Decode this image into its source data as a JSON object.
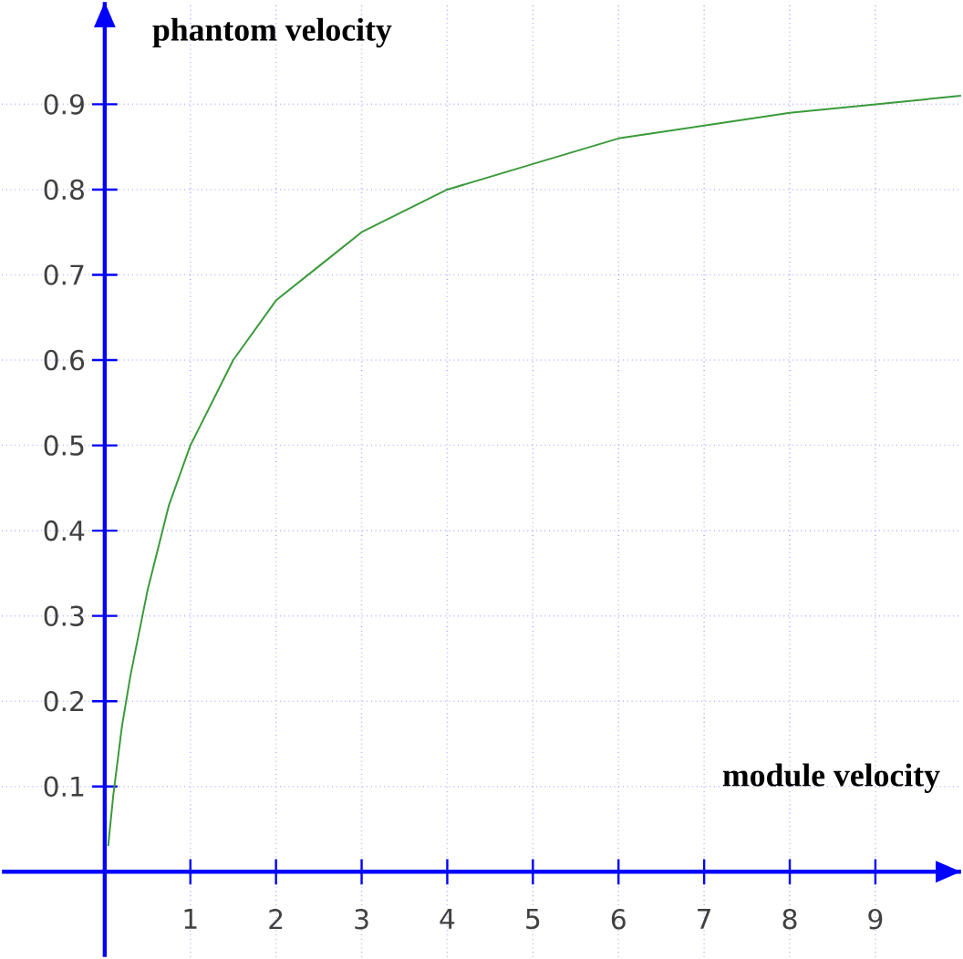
{
  "chart_data": {
    "type": "line",
    "xlabel": "module velocity",
    "ylabel": "phantom velocity",
    "xlim": [
      -1.2,
      10
    ],
    "ylim": [
      -0.1,
      1.02
    ],
    "xticks": [
      1,
      2,
      3,
      4,
      5,
      6,
      7,
      8,
      9
    ],
    "yticks": [
      0.1,
      0.2,
      0.3,
      0.4,
      0.5,
      0.6,
      0.7,
      0.8,
      0.9
    ],
    "grid": true,
    "marker": "none",
    "line_style": "solid",
    "series": [
      {
        "color": "#3a9a3a",
        "x": [
          0.04,
          0.1,
          0.2,
          0.3,
          0.5,
          0.75,
          1,
          1.5,
          2,
          2.5,
          3,
          4,
          5,
          6,
          7,
          8,
          9,
          10
        ],
        "values": [
          0.03,
          0.09,
          0.17,
          0.23,
          0.33,
          0.43,
          0.5,
          0.6,
          0.67,
          0.71,
          0.75,
          0.8,
          0.83,
          0.86,
          0.875,
          0.89,
          0.9,
          0.91
        ]
      }
    ]
  }
}
